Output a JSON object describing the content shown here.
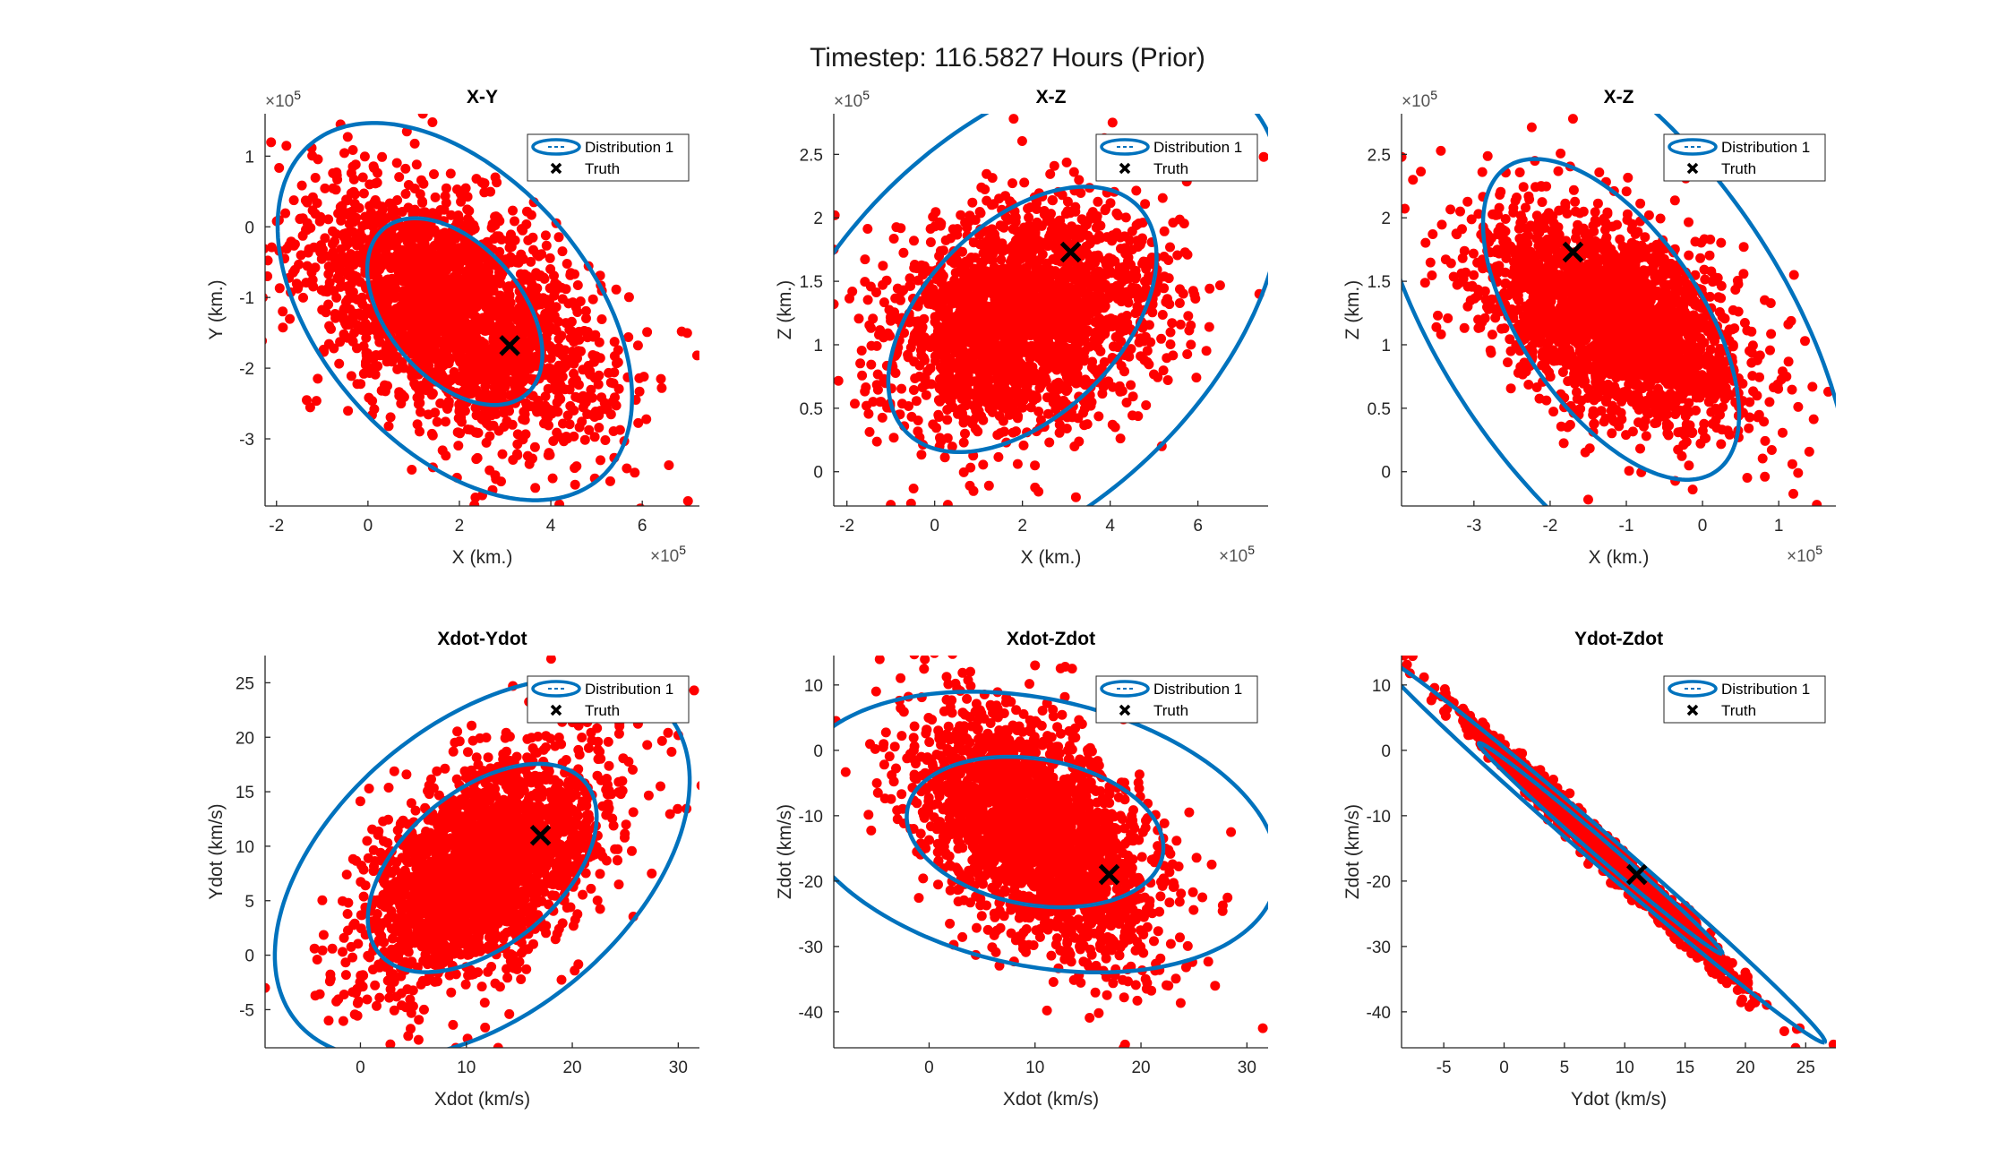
{
  "figure": {
    "title": "Timestep: 116.5827 Hours (Prior)",
    "colors": {
      "ellipse": "#0072bd",
      "samples": "#ff0000",
      "truth": "#000000",
      "axis": "#262626"
    }
  },
  "chart_data": [
    {
      "type": "scatter",
      "title": "X-Y",
      "xlabel": "X (km.)",
      "ylabel": "Y (km.)",
      "x_exponent_label": "10",
      "x_exponent": "5",
      "y_exponent_label": "10",
      "y_exponent": "5",
      "xlim": [
        -2.25,
        7.25
      ],
      "ylim": [
        -3.95,
        1.6
      ],
      "xticks": [
        -2,
        0,
        2,
        4,
        6
      ],
      "xtick_labels": [
        "-2",
        "0",
        "2",
        "4",
        "6"
      ],
      "yticks": [
        -3,
        -2,
        -1,
        0,
        1
      ],
      "ytick_labels": [
        "-3",
        "-2",
        "-1",
        "0",
        "1"
      ],
      "legend": {
        "position": "top-right",
        "entries": [
          "Distribution 1",
          "Truth"
        ]
      },
      "truth": [
        3.1,
        -1.68
      ],
      "distribution": {
        "center": [
          1.9,
          -1.2
        ],
        "sigma": [
          1.62,
          0.9
        ],
        "rho": -0.5
      },
      "ellipses": [
        {
          "cx": 1.9,
          "cy": -1.2,
          "rx": 2.05,
          "ry": 1.1,
          "angle": -25
        },
        {
          "cx": 1.9,
          "cy": -1.2,
          "rx": 4.15,
          "ry": 2.22,
          "angle": -25
        }
      ],
      "outliers": [
        [
          7.0,
          -3.88
        ],
        [
          7.2,
          -1.82
        ],
        [
          -2.2,
          -0.7
        ],
        [
          -0.6,
          1.45
        ],
        [
          1.2,
          1.6
        ],
        [
          2.5,
          -3.8
        ],
        [
          5.3,
          -3.6
        ],
        [
          -2.3,
          -1.0
        ]
      ]
    },
    {
      "type": "scatter",
      "title": "X-Z",
      "xlabel": "X (km.)",
      "ylabel": "Z (km.)",
      "x_exponent_label": "10",
      "x_exponent": "5",
      "y_exponent_label": "10",
      "y_exponent": "5",
      "xlim": [
        -2.3,
        7.6
      ],
      "ylim": [
        -0.27,
        2.82
      ],
      "xticks": [
        -2,
        0,
        2,
        4,
        6
      ],
      "xtick_labels": [
        "-2",
        "0",
        "2",
        "4",
        "6"
      ],
      "yticks": [
        0,
        0.5,
        1,
        1.5,
        2,
        2.5
      ],
      "ytick_labels": [
        "0",
        "0.5",
        "1",
        "1.5",
        "2",
        "2.5"
      ],
      "legend": {
        "position": "top-right",
        "entries": [
          "Distribution 1",
          "Truth"
        ]
      },
      "truth": [
        3.1,
        1.73
      ],
      "distribution": {
        "center": [
          2.0,
          1.2
        ],
        "sigma": [
          1.55,
          0.45
        ],
        "rho": 0.22
      },
      "ellipses": [
        {
          "cx": 2.0,
          "cy": 1.2,
          "rx": 3.1,
          "ry": 0.91,
          "angle": 10
        },
        {
          "cx": 2.0,
          "cy": 1.2,
          "rx": 6.0,
          "ry": 1.75,
          "angle": 10
        }
      ],
      "outliers": [
        [
          1.8,
          2.78
        ],
        [
          7.5,
          2.48
        ],
        [
          -2.3,
          1.75
        ],
        [
          7.4,
          1.4
        ],
        [
          -2.3,
          1.32
        ],
        [
          -1.0,
          -0.26
        ],
        [
          0.3,
          -0.26
        ],
        [
          4.5,
          2.6
        ]
      ]
    },
    {
      "type": "scatter",
      "title": "X-Z",
      "xlabel": "X (km.)",
      "ylabel": "Z (km.)",
      "x_exponent_label": "10",
      "x_exponent": "5",
      "y_exponent_label": "10",
      "y_exponent": "5",
      "xlim": [
        -3.95,
        1.75
      ],
      "ylim": [
        -0.27,
        2.82
      ],
      "xticks": [
        -3,
        -2,
        -1,
        0,
        1
      ],
      "xtick_labels": [
        "-3",
        "-2",
        "-1",
        "0",
        "1"
      ],
      "yticks": [
        0,
        0.5,
        1,
        1.5,
        2,
        2.5
      ],
      "ytick_labels": [
        "0",
        "0.5",
        "1",
        "1.5",
        "2",
        "2.5"
      ],
      "legend": {
        "position": "top-right",
        "entries": [
          "Distribution 1",
          "Truth"
        ]
      },
      "truth": [
        -1.7,
        1.73
      ],
      "distribution": {
        "center": [
          -1.2,
          1.2
        ],
        "sigma": [
          0.9,
          0.45
        ],
        "rho": -0.5
      },
      "ellipses": [
        {
          "cx": -1.2,
          "cy": 1.2,
          "rx": 1.9,
          "ry": 0.9,
          "angle": -32
        },
        {
          "cx": -1.2,
          "cy": 1.2,
          "rx": 3.55,
          "ry": 1.7,
          "angle": -32
        }
      ],
      "outliers": [
        [
          -3.95,
          2.48
        ],
        [
          -1.7,
          2.78
        ],
        [
          1.5,
          -0.26
        ],
        [
          1.65,
          0.63
        ],
        [
          -3.8,
          2.3
        ],
        [
          1.2,
          1.55
        ],
        [
          -1.5,
          -0.22
        ]
      ]
    },
    {
      "type": "scatter",
      "title": "Xdot-Ydot",
      "xlabel": "Xdot (km/s)",
      "ylabel": "Ydot (km/s)",
      "xlim": [
        -9,
        32
      ],
      "ylim": [
        -8.5,
        27.5
      ],
      "xticks": [
        0,
        10,
        20,
        30
      ],
      "xtick_labels": [
        "0",
        "10",
        "20",
        "30"
      ],
      "yticks": [
        -5,
        0,
        5,
        10,
        15,
        20,
        25
      ],
      "ytick_labels": [
        "-5",
        "0",
        "5",
        "10",
        "15",
        "20",
        "25"
      ],
      "legend": {
        "position": "top-right",
        "entries": [
          "Distribution 1",
          "Truth"
        ]
      },
      "truth": [
        17,
        11
      ],
      "distribution": {
        "center": [
          11.5,
          8.0
        ],
        "sigma": [
          5.8,
          5.3
        ],
        "rho": 0.5
      },
      "ellipses": [
        {
          "cx": 11.5,
          "cy": 8.0,
          "rx": 12.5,
          "ry": 7.2,
          "angle": 38
        },
        {
          "cx": 11.5,
          "cy": 8.0,
          "rx": 22.5,
          "ry": 13.5,
          "angle": 38
        }
      ],
      "outliers": [
        [
          18,
          27.2
        ],
        [
          31.5,
          24.3
        ],
        [
          -9,
          -3
        ],
        [
          9,
          -8.5
        ],
        [
          13,
          -8.5
        ],
        [
          -3,
          -6
        ],
        [
          27.5,
          7.5
        ],
        [
          6,
          -5
        ]
      ]
    },
    {
      "type": "scatter",
      "title": "Xdot-Zdot",
      "xlabel": "Xdot (km/s)",
      "ylabel": "Zdot (km/s)",
      "xlim": [
        -9,
        32
      ],
      "ylim": [
        -45.5,
        14.5
      ],
      "xticks": [
        0,
        10,
        20,
        30
      ],
      "xtick_labels": [
        "0",
        "10",
        "20",
        "30"
      ],
      "yticks": [
        -40,
        -30,
        -20,
        -10,
        0,
        10
      ],
      "ytick_labels": [
        "-40",
        "-30",
        "-20",
        "-10",
        "0",
        "10"
      ],
      "legend": {
        "position": "top-right",
        "entries": [
          "Distribution 1",
          "Truth"
        ]
      },
      "truth": [
        17,
        -19
      ],
      "distribution": {
        "center": [
          10.0,
          -12.5
        ],
        "sigma": [
          5.8,
          9.5
        ],
        "rho": -0.5
      },
      "ellipses": [
        {
          "cx": 10.0,
          "cy": -12.5,
          "rx": 13.0,
          "ry": 10.5,
          "angle": -38
        },
        {
          "cx": 10.0,
          "cy": -12.5,
          "rx": 25.0,
          "ry": 19.0,
          "angle": -38
        }
      ],
      "outliers": [
        [
          18.5,
          -45
        ],
        [
          31.5,
          -42.5
        ],
        [
          -8.8,
          4.5
        ],
        [
          28.5,
          -12.5
        ],
        [
          -5,
          9
        ],
        [
          13.5,
          12.5
        ],
        [
          10,
          13
        ]
      ]
    },
    {
      "type": "scatter",
      "title": "Ydot-Zdot",
      "xlabel": "Ydot (km/s)",
      "ylabel": "Zdot (km/s)",
      "xlim": [
        -8.5,
        27.5
      ],
      "ylim": [
        -45.5,
        14.5
      ],
      "xticks": [
        -5,
        0,
        5,
        10,
        15,
        20,
        25
      ],
      "xtick_labels": [
        "-5",
        "0",
        "5",
        "10",
        "15",
        "20",
        "25"
      ],
      "yticks": [
        -40,
        -30,
        -20,
        -10,
        0,
        10
      ],
      "ytick_labels": [
        "-40",
        "-30",
        "-20",
        "-10",
        "0",
        "10"
      ],
      "legend": {
        "position": "top-right",
        "entries": [
          "Distribution 1",
          "Truth"
        ]
      },
      "truth": [
        11,
        -19
      ],
      "distribution": {
        "center": [
          8.0,
          -15.0
        ],
        "sigma": [
          5.3,
          9.5
        ],
        "rho": -0.992
      },
      "ellipses": [
        {
          "cx": 8.0,
          "cy": -15.0,
          "rx": 19.0,
          "ry": 0.9,
          "angle": -58
        },
        {
          "cx": 8.0,
          "cy": -15.0,
          "rx": 35.0,
          "ry": 1.6,
          "angle": -58
        }
      ],
      "outliers": [
        [
          -8.3,
          14.5
        ],
        [
          24.5,
          -42.5
        ],
        [
          27.3,
          -45
        ],
        [
          20,
          -34
        ],
        [
          -3,
          5
        ]
      ]
    }
  ]
}
